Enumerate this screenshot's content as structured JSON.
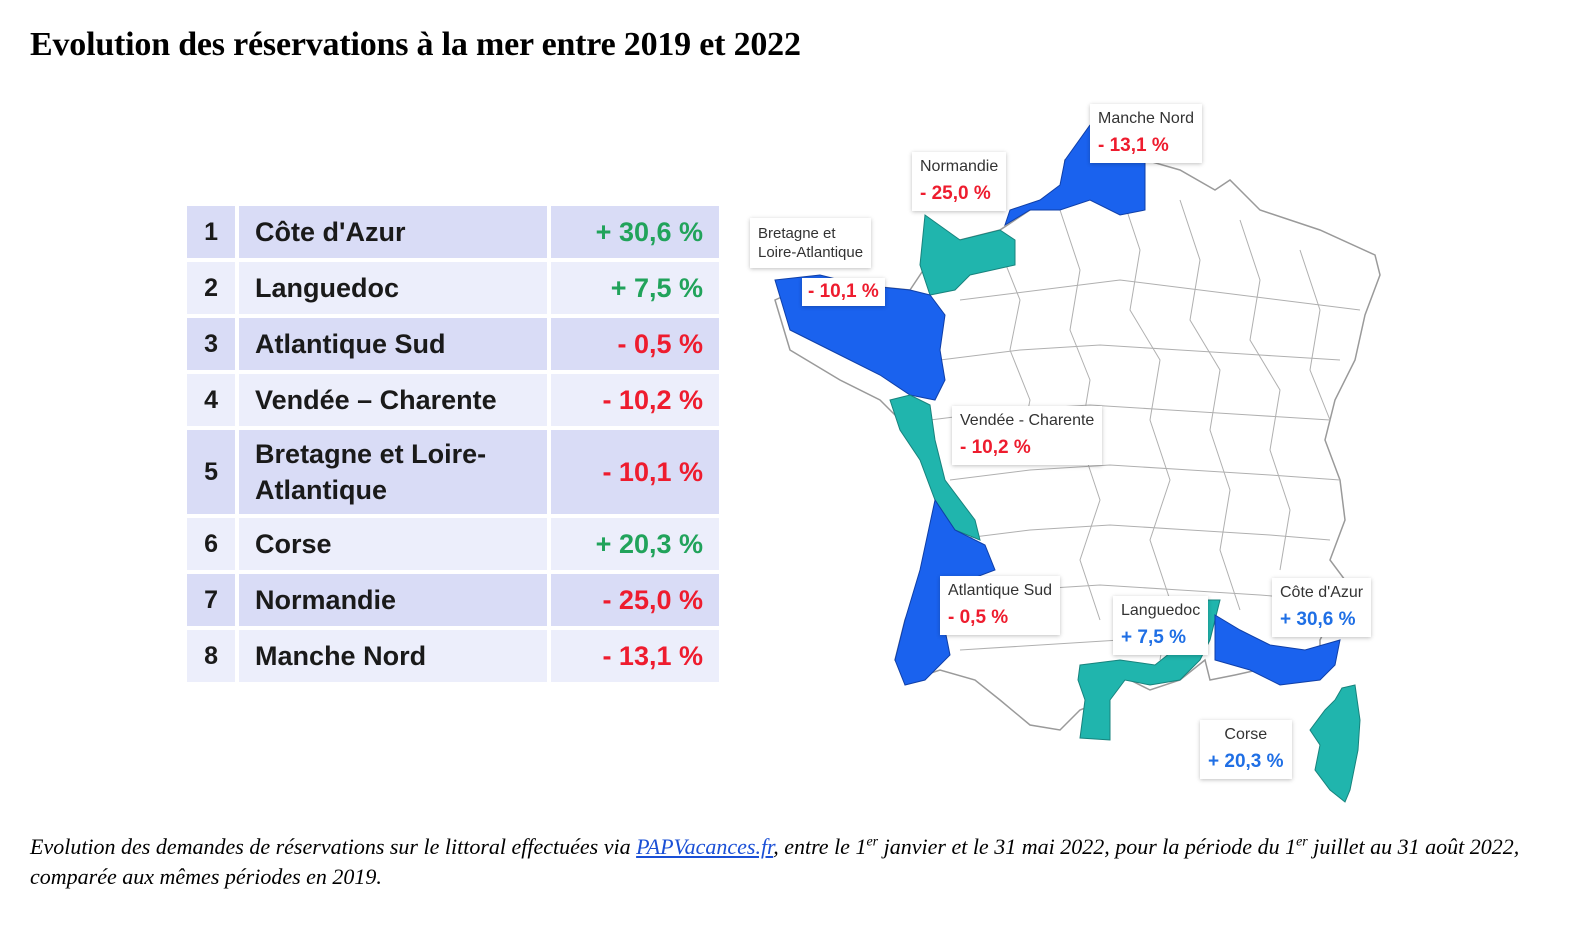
{
  "title": "Evolution des réservations à la mer entre 2019 et 2022",
  "ranking": [
    {
      "rank": "1",
      "name": "Côte d'Azur",
      "value": "+ 30,6 %",
      "trend": "up"
    },
    {
      "rank": "2",
      "name": "Languedoc",
      "value": "+ 7,5 %",
      "trend": "up"
    },
    {
      "rank": "3",
      "name": "Atlantique Sud",
      "value": "- 0,5 %",
      "trend": "down"
    },
    {
      "rank": "4",
      "name": "Vendée – Charente",
      "value": "- 10,2 %",
      "trend": "down"
    },
    {
      "rank": "5",
      "name": "Bretagne et Loire-Atlantique",
      "value": "- 10,1 %",
      "trend": "down"
    },
    {
      "rank": "6",
      "name": "Corse",
      "value": "+ 20,3 %",
      "trend": "up"
    },
    {
      "rank": "7",
      "name": "Normandie",
      "value": "- 25,0 %",
      "trend": "down"
    },
    {
      "rank": "8",
      "name": "Manche Nord",
      "value": "- 13,1 %",
      "trend": "down"
    }
  ],
  "map": {
    "labels": {
      "manche_nord": {
        "name": "Manche Nord",
        "value": "- 13,1 %"
      },
      "normandie": {
        "name": "Normandie",
        "value": "- 25,0 %"
      },
      "bretagne_line1": "Bretagne et",
      "bretagne_line2": "Loire-Atlantique",
      "bretagne_value": "- 10,1 %",
      "vendee": {
        "name": "Vendée - Charente",
        "value": "- 10,2 %"
      },
      "atlantique_sud": {
        "name": "Atlantique Sud",
        "value": "- 0,5 %"
      },
      "languedoc": {
        "name": "Languedoc",
        "value": "+ 7,5 %"
      },
      "cote_azur": {
        "name": "Côte d'Azur",
        "value": "+ 30,6 %"
      },
      "corse": {
        "name": "Corse",
        "value": "+ 20,3 %"
      }
    },
    "colors": {
      "increase_region": "#20b5ad",
      "decrease_region": "#1a62ee",
      "positive_text": "#1f6fe5",
      "negative_text": "#ee1c2e",
      "table_positive": "#21a35b"
    }
  },
  "footnote": {
    "part1": "Evolution des demandes de réservations sur le littoral effectuées via ",
    "link": "PAPVacances.fr",
    "part2": ", entre le 1",
    "sup1": "er",
    "part3": " janvier et le 31 mai 2022, pour la période du 1",
    "sup2": "er",
    "part4": " juillet au 31 août 2022, comparée aux mêmes périodes en 2019."
  }
}
